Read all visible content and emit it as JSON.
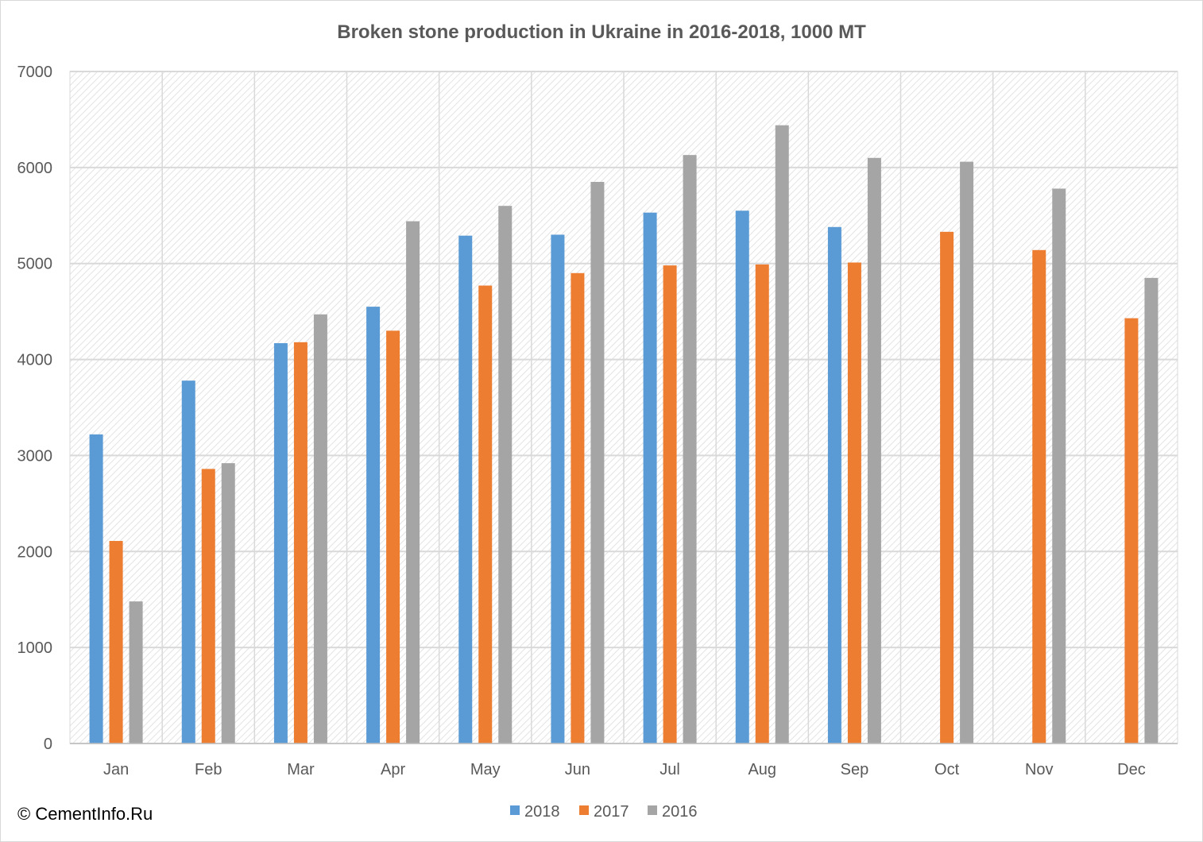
{
  "copyright": "© CementInfo.Ru",
  "chart_data": {
    "type": "bar",
    "title": "Broken stone production in Ukraine in 2016-2018, 1000 MT",
    "xlabel": "",
    "ylabel": "",
    "categories": [
      "Jan",
      "Feb",
      "Mar",
      "Apr",
      "May",
      "Jun",
      "Jul",
      "Aug",
      "Sep",
      "Oct",
      "Nov",
      "Dec"
    ],
    "series": [
      {
        "name": "2018",
        "color": "#5b9bd5",
        "values": [
          3220,
          3780,
          4170,
          4550,
          5290,
          5300,
          5530,
          5550,
          5380,
          null,
          null,
          null
        ]
      },
      {
        "name": "2017",
        "color": "#ed7d31",
        "values": [
          2110,
          2860,
          4180,
          4300,
          4770,
          4900,
          4980,
          4990,
          5010,
          5330,
          5140,
          4430
        ]
      },
      {
        "name": "2016",
        "color": "#a5a5a5",
        "values": [
          1480,
          2920,
          4470,
          5440,
          5600,
          5850,
          6130,
          6440,
          6100,
          6060,
          5780,
          4850
        ]
      }
    ],
    "ylim": [
      0,
      7000
    ],
    "yticks": [
      0,
      1000,
      2000,
      3000,
      4000,
      5000,
      6000,
      7000
    ],
    "grid": true,
    "legend": "bottom"
  }
}
